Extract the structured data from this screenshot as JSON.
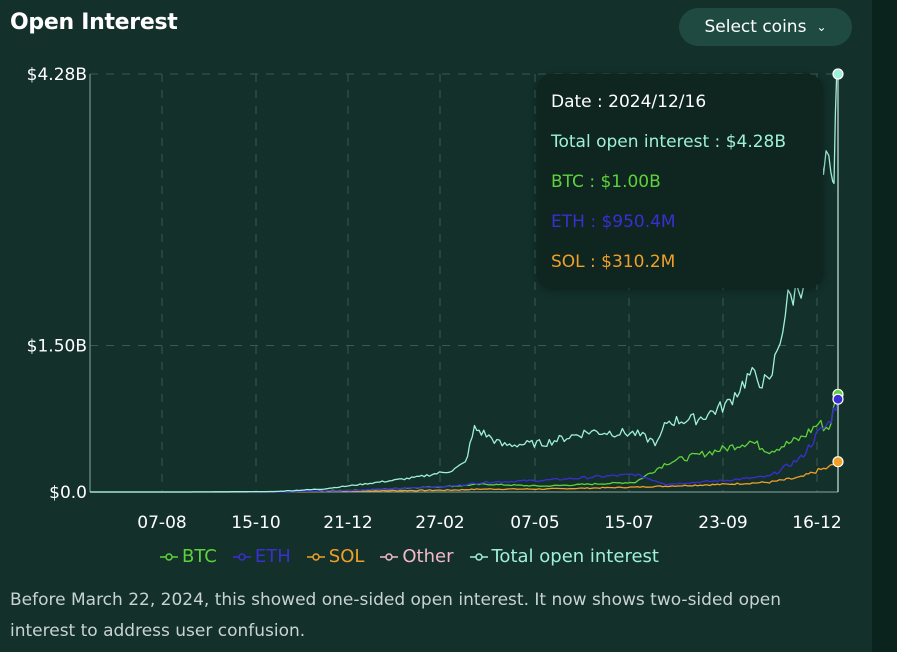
{
  "header": {
    "title": "Open Interest",
    "select_label": "Select coins",
    "select_icon": "chevron-down-icon"
  },
  "tooltip": {
    "date_line": "Date : 2024/12/16",
    "total_line": "Total open interest : $4.28B",
    "btc_line": "BTC : $1.00B",
    "eth_line": "ETH : $950.4M",
    "sol_line": "SOL : $310.2M"
  },
  "footnote": "Before March 22, 2024, this showed one-sided open interest. It now shows two-sided open interest to address user confusion.",
  "colors": {
    "btc": "#5fd13a",
    "eth": "#3a2fd0",
    "sol": "#f0a028",
    "other": "#f3b9c9",
    "total": "#9ff0d6",
    "grid": "#3a5a52",
    "axis": "#8aa7a0"
  },
  "chart_data": {
    "type": "line",
    "title": "Open Interest",
    "y_tick_labels": [
      "$0.0",
      "$1.50B",
      "$4.28B"
    ],
    "y_ticks": [
      0,
      1.5,
      4.28
    ],
    "x_tick_labels": [
      "07-08",
      "15-10",
      "21-12",
      "27-02",
      "07-05",
      "15-07",
      "23-09",
      "16-12"
    ],
    "ylim": [
      0,
      4.28
    ],
    "y_unit": "B USD",
    "xlim": [
      "2023-05-28",
      "2024-12-16"
    ],
    "grid": true,
    "legend_position": "bottom",
    "legend": [
      "BTC",
      "ETH",
      "SOL",
      "Other",
      "Total open interest"
    ],
    "series": [
      {
        "name": "Total open interest",
        "color_key": "total",
        "x": [
          "2023-05-28",
          "2023-08-07",
          "2023-10-15",
          "2023-11-20",
          "2023-12-21",
          "2024-01-31",
          "2024-02-27",
          "2024-03-08",
          "2024-03-15",
          "2024-03-22",
          "2024-04-05",
          "2024-05-07",
          "2024-06-10",
          "2024-07-15",
          "2024-08-01",
          "2024-08-08",
          "2024-09-01",
          "2024-09-23",
          "2024-10-10",
          "2024-10-25",
          "2024-11-08",
          "2024-11-18",
          "2024-11-22",
          "2024-12-01",
          "2024-12-05",
          "2024-12-09",
          "2024-12-12",
          "2024-12-14",
          "2024-12-16"
        ],
        "values": [
          0,
          0,
          0.005,
          0.03,
          0.08,
          0.15,
          0.22,
          0.3,
          0.65,
          0.6,
          0.48,
          0.5,
          0.62,
          0.6,
          0.5,
          0.72,
          0.75,
          0.9,
          1.2,
          1.1,
          1.95,
          2.15,
          2.25,
          3.4,
          3.1,
          3.6,
          2.95,
          3.9,
          4.28
        ]
      },
      {
        "name": "BTC",
        "color_key": "btc",
        "x": [
          "2023-05-28",
          "2023-10-15",
          "2023-12-21",
          "2024-02-27",
          "2024-03-22",
          "2024-05-07",
          "2024-07-15",
          "2024-08-08",
          "2024-09-23",
          "2024-10-10",
          "2024-10-25",
          "2024-11-18",
          "2024-12-01",
          "2024-12-09",
          "2024-12-16"
        ],
        "values": [
          0,
          0,
          0.02,
          0.06,
          0.08,
          0.06,
          0.1,
          0.3,
          0.45,
          0.52,
          0.42,
          0.55,
          0.7,
          0.65,
          1.0
        ]
      },
      {
        "name": "ETH",
        "color_key": "eth",
        "x": [
          "2023-05-28",
          "2023-10-15",
          "2023-12-21",
          "2024-02-27",
          "2024-03-22",
          "2024-05-07",
          "2024-07-15",
          "2024-08-08",
          "2024-09-23",
          "2024-10-25",
          "2024-11-18",
          "2024-12-01",
          "2024-12-09",
          "2024-12-16"
        ],
        "values": [
          0,
          0,
          0.02,
          0.06,
          0.1,
          0.12,
          0.18,
          0.08,
          0.12,
          0.16,
          0.35,
          0.6,
          0.7,
          0.95
        ]
      },
      {
        "name": "SOL",
        "color_key": "sol",
        "x": [
          "2023-05-28",
          "2023-10-15",
          "2023-12-21",
          "2024-02-27",
          "2024-03-22",
          "2024-05-07",
          "2024-07-15",
          "2024-09-23",
          "2024-10-25",
          "2024-11-18",
          "2024-12-01",
          "2024-12-09",
          "2024-12-16"
        ],
        "values": [
          0,
          0,
          0.01,
          0.02,
          0.03,
          0.03,
          0.05,
          0.08,
          0.1,
          0.15,
          0.22,
          0.25,
          0.31
        ]
      }
    ]
  }
}
